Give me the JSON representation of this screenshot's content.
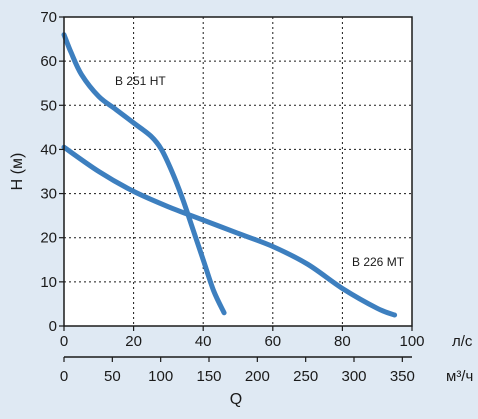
{
  "colors": {
    "background": "#dfe9f3",
    "plot_background": "#ffffff",
    "curve": "#3d7fbf",
    "axis": "#1a1a1a"
  },
  "chart_data": {
    "type": "line",
    "title": "",
    "ylabel": "H (м)",
    "xlabel": "Q",
    "ylim": [
      0,
      70
    ],
    "yticks": [
      "0",
      "10",
      "20",
      "30",
      "40",
      "50",
      "60",
      "70"
    ],
    "x_axes": [
      {
        "unit": "л/с",
        "range": [
          0,
          100
        ],
        "ticks": [
          "0",
          "20",
          "40",
          "60",
          "80",
          "100"
        ]
      },
      {
        "unit": "м³/ч",
        "range": [
          0,
          360
        ],
        "ticks": [
          "0",
          "50",
          "100",
          "150",
          "200",
          "250",
          "300",
          "350"
        ]
      }
    ],
    "grid": true,
    "series": [
      {
        "name": "B 251 HT",
        "x_unit": "л/с",
        "x": [
          0,
          2,
          5,
          10,
          15,
          20,
          25,
          28,
          31,
          34,
          37,
          40,
          43,
          46
        ],
        "y": [
          66,
          62,
          57,
          52,
          49,
          46,
          43,
          40,
          35,
          29,
          22,
          15,
          8,
          3
        ]
      },
      {
        "name": "B 226 MT",
        "x_unit": "л/с",
        "x": [
          0,
          10,
          20,
          30,
          40,
          50,
          60,
          70,
          80,
          90,
          95
        ],
        "y": [
          40.5,
          35,
          30.5,
          27,
          24,
          21,
          18,
          14,
          8.5,
          4,
          2.5
        ]
      }
    ]
  }
}
